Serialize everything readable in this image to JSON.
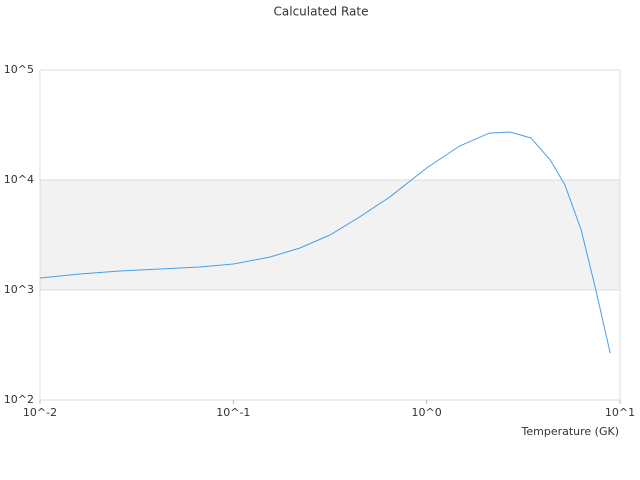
{
  "chart_data": {
    "type": "line",
    "title": "Calculated Rate",
    "x_label": "Temperature (GK)",
    "x": [
      0.01,
      0.0161,
      0.0259,
      0.0417,
      0.0671,
      0.1,
      0.155,
      0.221,
      0.316,
      0.45,
      0.644,
      1.0,
      1.48,
      2.11,
      2.7,
      3.46,
      4.36,
      5.19,
      6.3,
      7.5,
      8.9
    ],
    "values": [
      1285,
      1397,
      1489,
      1552,
      1619,
      1722,
      1995,
      2410,
      3162,
      4613,
      7000,
      12850,
      20370,
      26700,
      27300,
      24100,
      15200,
      9010,
      3510,
      1000,
      267
    ],
    "color": "#4a9ee8",
    "xlog": true,
    "ylog": true,
    "xlim": [
      0.01,
      10
    ],
    "ylim": [
      100,
      100000
    ],
    "xticks": [
      {
        "value": 0.01,
        "label": "10^-2"
      },
      {
        "value": 0.1,
        "label": "10^-1"
      },
      {
        "value": 1,
        "label": "10^0"
      },
      {
        "value": 10,
        "label": "10^1"
      }
    ],
    "yticks": [
      {
        "value": 100,
        "label": "10^2"
      },
      {
        "value": 1000,
        "label": "10^3"
      },
      {
        "value": 10000,
        "label": "10^4"
      },
      {
        "value": 100000,
        "label": "10^5"
      }
    ],
    "grid": true,
    "alternate_bands": true
  }
}
